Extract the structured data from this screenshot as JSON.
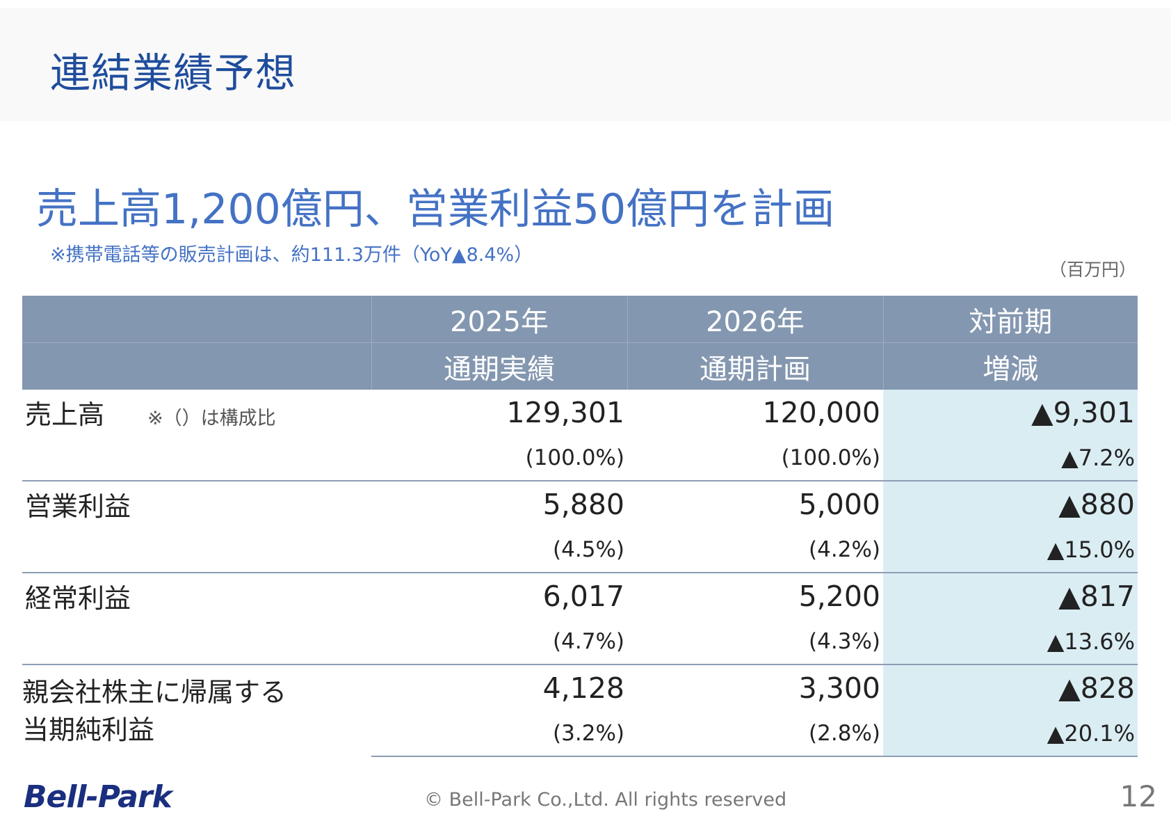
{
  "slide_title": "連結業績予想",
  "headline": "売上高1,200億円、営業利益50億円を計画",
  "note": "※携帯電話等の販売計画は、約111.3万件（YoY▲8.4%）",
  "unit": "（百万円）",
  "table": {
    "header_row1": [
      "",
      "2025年",
      "2026年",
      "対前期"
    ],
    "header_row2": [
      "",
      "通期実績",
      "通期計画",
      "増減"
    ],
    "rows": [
      {
        "label": "売上高",
        "sub_note": "※（）は構成比",
        "fy2025": "129,301",
        "fy2025_pct": "(100.0%)",
        "fy2026": "120,000",
        "fy2026_pct": "(100.0%)",
        "change": "▲9,301",
        "change_pct": "▲7.2%"
      },
      {
        "label": "営業利益",
        "fy2025": "5,880",
        "fy2025_pct": "(4.5%)",
        "fy2026": "5,000",
        "fy2026_pct": "(4.2%)",
        "change": "▲880",
        "change_pct": "▲15.0%"
      },
      {
        "label": "経常利益",
        "fy2025": "6,017",
        "fy2025_pct": "(4.7%)",
        "fy2026": "5,200",
        "fy2026_pct": "(4.3%)",
        "change": "▲817",
        "change_pct": "▲13.6%"
      },
      {
        "label_line1": "親会社株主に帰属する",
        "label_line2": "当期純利益",
        "fy2025": "4,128",
        "fy2025_pct": "(3.2%)",
        "fy2026": "3,300",
        "fy2026_pct": "(2.8%)",
        "change": "▲828",
        "change_pct": "▲20.1%"
      }
    ]
  },
  "footer": {
    "logo_text": "Bell-Park",
    "copyright": "© Bell-Park Co.,Ltd. All rights reserved",
    "page_number": "12"
  },
  "colors": {
    "title_blue": "#1f4d9c",
    "headline_blue": "#4472c4",
    "header_fill": "#8497b0",
    "change_column_fill": "#daedf3",
    "logo_navy": "#1b2f80"
  }
}
